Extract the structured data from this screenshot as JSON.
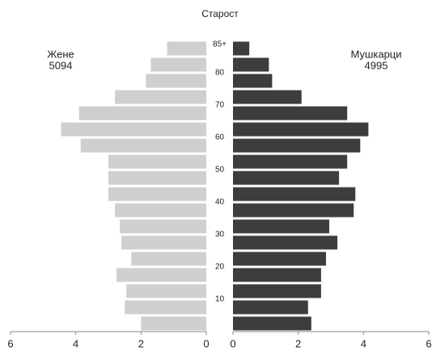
{
  "chart_data": {
    "type": "pyramid",
    "title": "Старост",
    "categories": [
      null,
      null,
      "10",
      null,
      "20",
      null,
      "30",
      null,
      "40",
      null,
      "50",
      null,
      "60",
      null,
      "70",
      null,
      "80",
      "85+"
    ],
    "series": [
      {
        "name": "Жене",
        "total": 5094,
        "color": "#cfcfcf",
        "values": [
          2.0,
          2.5,
          2.45,
          2.75,
          2.3,
          2.6,
          2.65,
          2.8,
          3.0,
          3.0,
          3.0,
          3.85,
          4.45,
          3.9,
          2.8,
          1.85,
          1.7,
          1.2
        ]
      },
      {
        "name": "Мушкарци",
        "total": 4995,
        "color": "#3d3d3d",
        "values": [
          2.4,
          2.3,
          2.7,
          2.7,
          2.85,
          3.2,
          2.95,
          3.7,
          3.75,
          3.25,
          3.5,
          3.9,
          4.15,
          3.5,
          2.1,
          1.2,
          1.1,
          0.5
        ]
      }
    ],
    "xlim": [
      0,
      6
    ],
    "xticks": [
      0,
      2,
      4,
      6
    ]
  }
}
